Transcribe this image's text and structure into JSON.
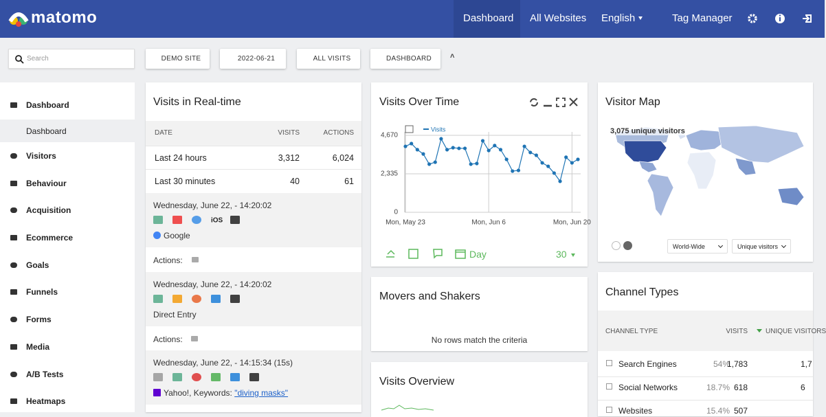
{
  "header": {
    "logo": "matomo",
    "nav": [
      "Dashboard",
      "All Websites",
      "English",
      "Tag Manager"
    ]
  },
  "toolbar": {
    "search": "Search",
    "buttons": [
      "DEMO SITE",
      "2022-06-21",
      "ALL VISITS",
      "DASHBOARD"
    ]
  },
  "sidebar": {
    "items": [
      "Dashboard",
      "Visitors",
      "Behaviour",
      "Acquisition",
      "Ecommerce",
      "Goals",
      "Funnels",
      "Forms",
      "Media",
      "A/B Tests",
      "Heatmaps"
    ],
    "active_sub": "Dashboard"
  },
  "realtime": {
    "title": "Visits in Real-time",
    "columns": [
      "DATE",
      "VISITS",
      "ACTIONS"
    ],
    "rows": [
      [
        "Last 24 hours",
        "3,312",
        "6,024"
      ],
      [
        "Last 30 minutes",
        "40",
        "61"
      ]
    ],
    "visits": [
      {
        "time": "Wednesday, June 22, - 14:20:02",
        "source": "Google",
        "actions": "Actions:"
      },
      {
        "time": "Wednesday, June 22, - 14:20:02",
        "source": "Direct Entry",
        "actions": "Actions:"
      },
      {
        "time": "Wednesday, June 22, - 14:15:34 (15s)",
        "source": "Yahoo!, Keywords:",
        "keyword": "\"diving masks\""
      }
    ]
  },
  "chart_data": {
    "type": "line",
    "title": "Visits Over Time",
    "categories": [
      "Mon, May 23",
      null,
      null,
      null,
      null,
      null,
      null,
      null,
      null,
      null,
      null,
      null,
      null,
      null,
      "Mon, Jun 6",
      null,
      null,
      null,
      null,
      null,
      null,
      null,
      null,
      null,
      null,
      null,
      null,
      null,
      "Mon, Jun 20",
      null
    ],
    "series": [
      {
        "name": "Visits",
        "color": "#1f74b4",
        "values": [
          4000,
          4170,
          3800,
          3540,
          2920,
          3040,
          4460,
          3800,
          3920,
          3880,
          3880,
          2920,
          2960,
          4340,
          3750,
          4050,
          3800,
          3210,
          2500,
          2540,
          4000,
          3630,
          3460,
          3000,
          2790,
          2380,
          1880,
          3340,
          3000,
          3210
        ]
      }
    ],
    "ylim": [
      0,
      4670
    ],
    "yticks": [
      0,
      {
        "value": 2335,
        "label": "2,335"
      },
      {
        "value": 4670,
        "label": "4,670"
      }
    ],
    "grid": true
  },
  "chart_footer": {
    "period": "Day",
    "limit": "30"
  },
  "map": {
    "title": "Visitor Map",
    "summary": "3,075 unique visitors",
    "selects": [
      "World-Wide",
      "Unique visitors"
    ]
  },
  "movers": {
    "title": "Movers and Shakers",
    "empty": "No rows match the criteria"
  },
  "overview": {
    "title": "Visits Overview"
  },
  "channels": {
    "title": "Channel Types",
    "columns": [
      "CHANNEL TYPE",
      "VISITS",
      "UNIQUE VISITORS"
    ],
    "rows": [
      [
        "Search Engines",
        "54%",
        "1,783",
        "1,7"
      ],
      [
        "Social Networks",
        "18.7%",
        "618",
        "6"
      ],
      [
        "Websites",
        "15.4%",
        "507"
      ]
    ]
  }
}
